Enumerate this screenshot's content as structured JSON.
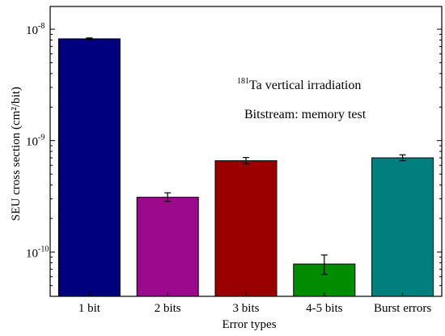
{
  "chart_data": {
    "type": "bar",
    "yscale": "log",
    "ylim": [
      4e-11,
      1.6e-08
    ],
    "categories": [
      "1 bit",
      "2 bits",
      "3 bits",
      "4-5 bits",
      "Burst errors"
    ],
    "values": [
      8.2e-09,
      3.1e-10,
      6.6e-10,
      7.8e-11,
      7e-10
    ],
    "error_low": [
      8.05e-09,
      2.85e-10,
      6.2e-10,
      6.3e-11,
      6.6e-10
    ],
    "error_high": [
      8.35e-09,
      3.4e-10,
      7.05e-10,
      9.4e-11,
      7.45e-10
    ],
    "colors": [
      "#00007f",
      "#9b0a8b",
      "#9b0000",
      "#008c00",
      "#007f7f"
    ],
    "xlabel": "Error types",
    "ylabel": "SEU cross section (cm²/bit)",
    "ytick_labels": [
      {
        "value": 1e-10,
        "mantissa": "10",
        "exponent": "-10"
      },
      {
        "value": 1e-09,
        "mantissa": "10",
        "exponent": "-9"
      },
      {
        "value": 1e-08,
        "mantissa": "10",
        "exponent": "-8"
      }
    ],
    "annotation": {
      "isotope_superscript": "181",
      "isotope_text": "Ta vertical irradiation",
      "bitstream_text": "Bitstream: memory test"
    }
  }
}
